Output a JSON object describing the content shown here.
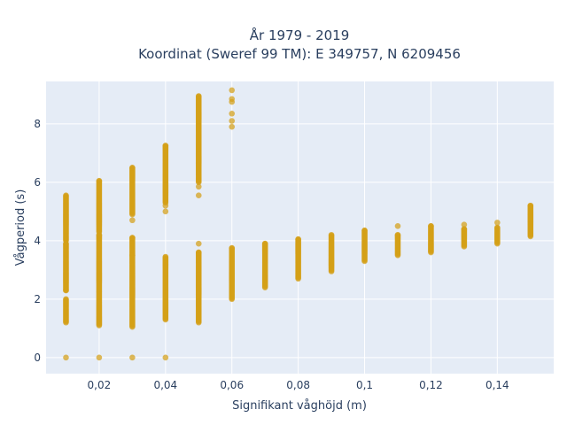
{
  "chart_data": {
    "type": "scatter",
    "title_lines": [
      "År 1979 - 2019",
      "Koordinat (Sweref 99 TM): E 349757, N 6209456"
    ],
    "xlabel": "Signifikant våghöjd (m)",
    "ylabel": "Vågperiod (s)",
    "xlim": [
      0.004,
      0.157
    ],
    "ylim": [
      -0.55,
      9.45
    ],
    "x_ticks": [
      0.02,
      0.04,
      0.06,
      0.08,
      0.1,
      0.12,
      0.14
    ],
    "x_tick_labels": [
      "0,02",
      "0,04",
      "0,06",
      "0,08",
      "0,1",
      "0,12",
      "0,14"
    ],
    "y_ticks": [
      0,
      2,
      4,
      6,
      8
    ],
    "y_tick_labels": [
      "0",
      "2",
      "4",
      "6",
      "8"
    ],
    "grid": true,
    "background": "#e5ecf6",
    "marker_color": "#d4a017",
    "clusters": [
      {
        "x": 0.01,
        "ranges": [
          [
            4.0,
            5.55
          ],
          [
            2.3,
            3.9
          ],
          [
            1.2,
            2.0
          ]
        ],
        "points": [
          0.0,
          2.3
        ]
      },
      {
        "x": 0.02,
        "ranges": [
          [
            4.3,
            6.05
          ],
          [
            1.1,
            4.2
          ]
        ],
        "points": [
          0.0
        ]
      },
      {
        "x": 0.03,
        "ranges": [
          [
            4.9,
            6.5
          ],
          [
            3.5,
            4.1
          ],
          [
            1.05,
            3.5
          ]
        ],
        "points": [
          0.0,
          4.7
        ]
      },
      {
        "x": 0.04,
        "ranges": [
          [
            5.3,
            7.25
          ],
          [
            1.3,
            3.45
          ]
        ],
        "points": [
          0.0,
          5.0,
          5.2
        ]
      },
      {
        "x": 0.05,
        "ranges": [
          [
            6.0,
            8.95
          ],
          [
            1.2,
            3.6
          ]
        ],
        "points": [
          5.85,
          5.55,
          3.9
        ]
      },
      {
        "x": 0.06,
        "ranges": [
          [
            2.0,
            3.75
          ]
        ],
        "points": [
          9.15,
          8.85,
          8.75,
          8.35,
          8.1,
          7.9
        ]
      },
      {
        "x": 0.07,
        "ranges": [
          [
            2.4,
            3.9
          ]
        ],
        "points": []
      },
      {
        "x": 0.08,
        "ranges": [
          [
            2.7,
            4.05
          ]
        ],
        "points": []
      },
      {
        "x": 0.09,
        "ranges": [
          [
            2.95,
            4.2
          ]
        ],
        "points": []
      },
      {
        "x": 0.1,
        "ranges": [
          [
            3.3,
            4.35
          ]
        ],
        "points": []
      },
      {
        "x": 0.11,
        "ranges": [
          [
            3.5,
            4.2
          ]
        ],
        "points": [
          4.5
        ]
      },
      {
        "x": 0.12,
        "ranges": [
          [
            3.6,
            4.5
          ]
        ],
        "points": []
      },
      {
        "x": 0.13,
        "ranges": [
          [
            3.8,
            4.4
          ]
        ],
        "points": [
          4.55
        ]
      },
      {
        "x": 0.14,
        "ranges": [
          [
            3.9,
            4.45
          ]
        ],
        "points": [
          4.62
        ]
      },
      {
        "x": 0.15,
        "ranges": [
          [
            4.15,
            5.2
          ]
        ],
        "points": []
      }
    ]
  }
}
